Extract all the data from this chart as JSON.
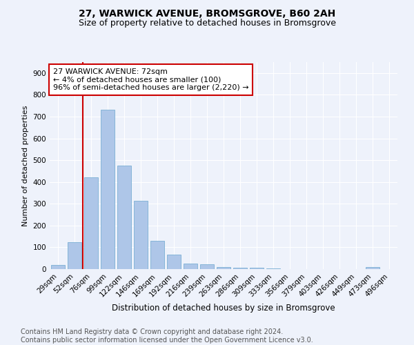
{
  "title": "27, WARWICK AVENUE, BROMSGROVE, B60 2AH",
  "subtitle": "Size of property relative to detached houses in Bromsgrove",
  "xlabel": "Distribution of detached houses by size in Bromsgrove",
  "ylabel": "Number of detached properties",
  "categories": [
    "29sqm",
    "52sqm",
    "76sqm",
    "99sqm",
    "122sqm",
    "146sqm",
    "169sqm",
    "192sqm",
    "216sqm",
    "239sqm",
    "263sqm",
    "286sqm",
    "309sqm",
    "333sqm",
    "356sqm",
    "379sqm",
    "403sqm",
    "426sqm",
    "449sqm",
    "473sqm",
    "496sqm"
  ],
  "values": [
    20,
    125,
    420,
    730,
    475,
    315,
    130,
    65,
    25,
    22,
    10,
    5,
    5,
    2,
    1,
    0,
    0,
    0,
    0,
    8,
    0
  ],
  "bar_color": "#aec6e8",
  "bar_edge_color": "#7aafd4",
  "property_line_color": "#cc0000",
  "annotation_text": "27 WARWICK AVENUE: 72sqm\n← 4% of detached houses are smaller (100)\n96% of semi-detached houses are larger (2,220) →",
  "annotation_box_color": "#ffffff",
  "annotation_box_edge_color": "#cc0000",
  "ylim": [
    0,
    950
  ],
  "yticks": [
    0,
    100,
    200,
    300,
    400,
    500,
    600,
    700,
    800,
    900
  ],
  "footer_text": "Contains HM Land Registry data © Crown copyright and database right 2024.\nContains public sector information licensed under the Open Government Licence v3.0.",
  "background_color": "#eef2fb",
  "plot_background_color": "#eef2fb",
  "grid_color": "#ffffff",
  "title_fontsize": 10,
  "subtitle_fontsize": 9,
  "annotation_fontsize": 8,
  "footer_fontsize": 7,
  "ylabel_fontsize": 8,
  "xlabel_fontsize": 8.5,
  "tick_fontsize": 7.5
}
